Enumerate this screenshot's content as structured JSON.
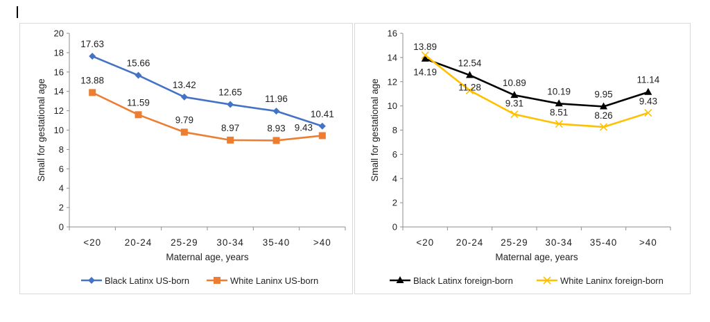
{
  "chart_data": [
    {
      "type": "line",
      "categories": [
        "<20",
        "20-24",
        "25-29",
        "30-34",
        "35-40",
        ">40"
      ],
      "xlabel": "Maternal age, years",
      "ylabel": "Small for gestational age",
      "ylim": [
        0,
        20
      ],
      "yticks": [
        0,
        2,
        4,
        6,
        8,
        10,
        12,
        14,
        16,
        18,
        20
      ],
      "grid": false,
      "legend_position": "bottom",
      "series": [
        {
          "name": "Black Latinx US-born",
          "color": "#4472C4",
          "marker": "diamond",
          "values": [
            17.63,
            15.66,
            13.42,
            12.65,
            11.96,
            10.41
          ],
          "labels": [
            "17.63",
            "15.66",
            "13.42",
            "12.65",
            "11.96",
            "10.41"
          ]
        },
        {
          "name": "White Laninx US-born",
          "color": "#ED7D31",
          "marker": "square",
          "values": [
            13.88,
            11.59,
            9.79,
            8.97,
            8.93,
            9.43
          ],
          "labels": [
            "13.88",
            "11.59",
            "9.79",
            "8.97",
            "8.93",
            "9.43"
          ]
        }
      ]
    },
    {
      "type": "line",
      "categories": [
        "<20",
        "20-24",
        "25-29",
        "30-34",
        "35-40",
        ">40"
      ],
      "xlabel": "Maternal age, years",
      "ylabel": "Small for gestational age",
      "ylim": [
        0,
        16
      ],
      "yticks": [
        0,
        2,
        4,
        6,
        8,
        10,
        12,
        14,
        16
      ],
      "grid": false,
      "legend_position": "bottom",
      "series": [
        {
          "name": "Black Latinx foreign-born",
          "color": "#000000",
          "marker": "triangle",
          "values": [
            13.89,
            12.54,
            10.89,
            10.19,
            9.95,
            11.14
          ],
          "labels": [
            "13.89",
            "12.54",
            "10.89",
            "10.19",
            "9.95",
            "11.14"
          ]
        },
        {
          "name": "White Laninx foreign-born",
          "color": "#FFC000",
          "marker": "x",
          "values": [
            14.19,
            11.28,
            9.31,
            8.51,
            8.26,
            9.43
          ],
          "labels": [
            "14.19",
            "11.28",
            "9.31",
            "8.51",
            "8.26",
            "9.43"
          ]
        }
      ]
    }
  ]
}
